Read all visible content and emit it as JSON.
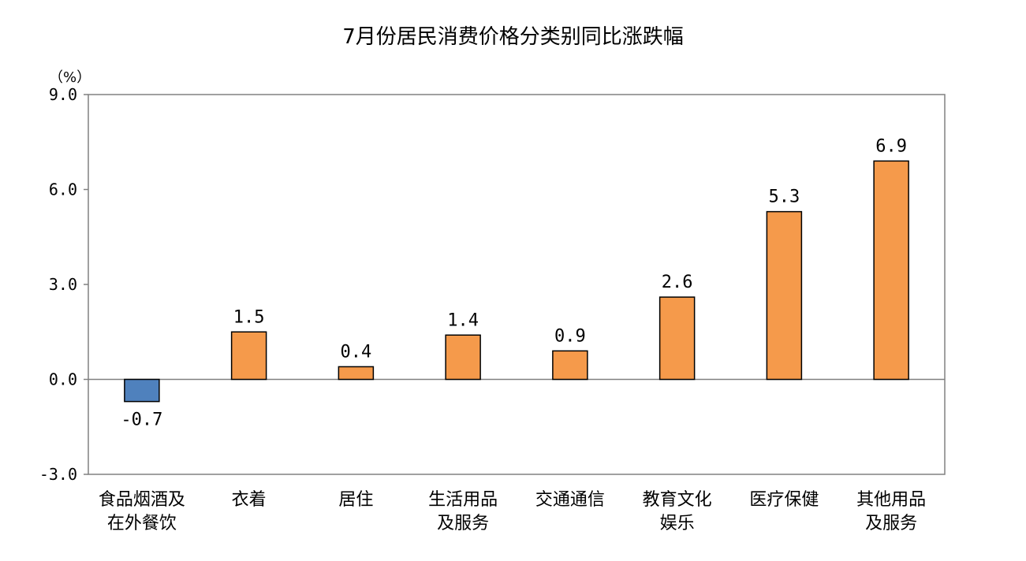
{
  "chart_data": {
    "type": "bar",
    "title": "7月份居民消费价格分类别同比涨跌幅",
    "unit": "（%）",
    "categories": [
      [
        "食品烟酒及",
        "在外餐饮"
      ],
      [
        "衣着"
      ],
      [
        "居住"
      ],
      [
        "生活用品",
        "及服务"
      ],
      [
        "交通通信"
      ],
      [
        "教育文化",
        "娱乐"
      ],
      [
        "医疗保健"
      ],
      [
        "其他用品",
        "及服务"
      ]
    ],
    "values": [
      -0.7,
      1.5,
      0.4,
      1.4,
      0.9,
      2.6,
      5.3,
      6.9
    ],
    "value_labels": [
      "-0.7",
      "1.5",
      "0.4",
      "1.4",
      "0.9",
      "2.6",
      "5.3",
      "6.9"
    ],
    "ylim": [
      -3.0,
      9.0
    ],
    "yticks": [
      9.0,
      6.0,
      3.0,
      0.0,
      -3.0
    ],
    "ytick_labels": [
      "9.0",
      "6.0",
      "3.0",
      "0.0",
      "-3.0"
    ],
    "xlabel": "",
    "ylabel": "",
    "grid": false,
    "colors": {
      "positive": "#F59A4B",
      "negative": "#4F81BD",
      "outline": "#000000",
      "axis": "#808080"
    }
  }
}
